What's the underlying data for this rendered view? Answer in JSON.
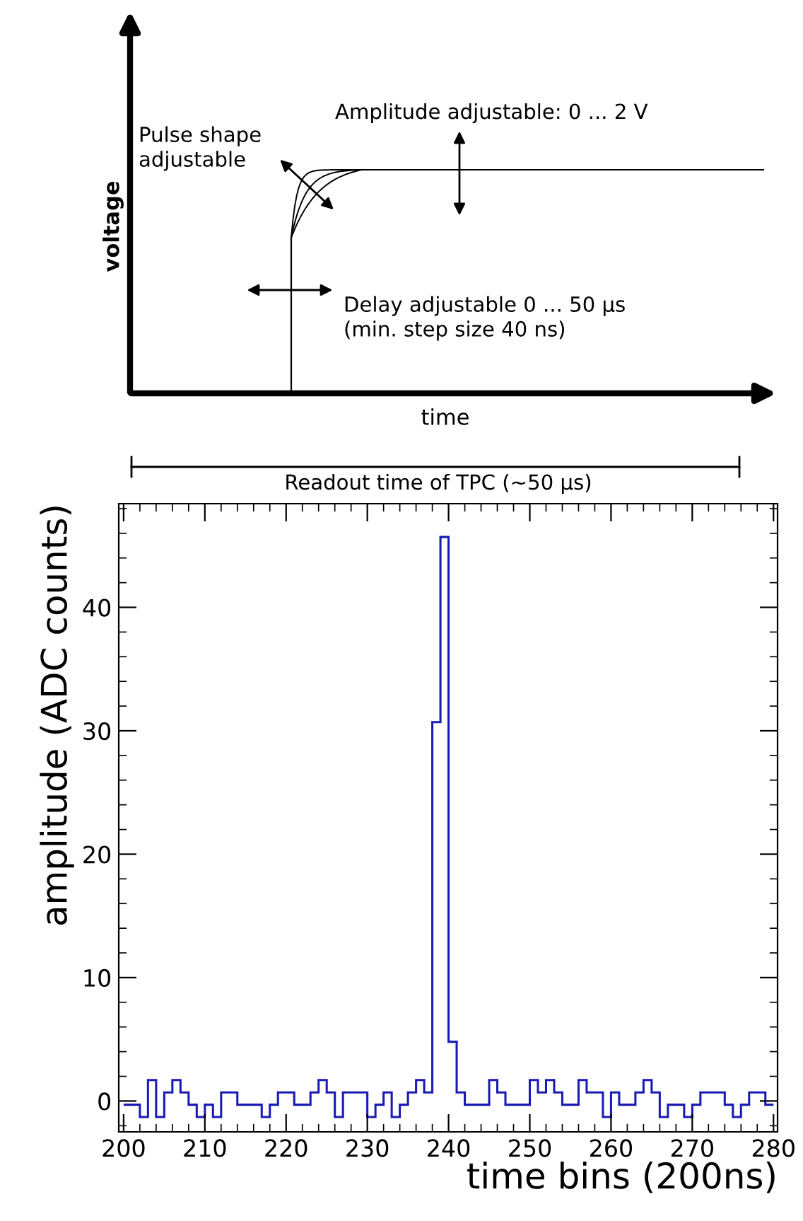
{
  "chart_data": [
    {
      "type": "other",
      "xlabel": "time",
      "ylabel": "voltage",
      "annotations": [
        "Amplitude adjustable: 0 ... 2 V",
        "Pulse shape\nadjustable",
        "Delay adjustable 0 ... 50 µs\n(min. step size 40 ns)",
        "Readout time of TPC (~50 µs)"
      ]
    },
    {
      "type": "histogram",
      "xlabel": "time bins (200ns)",
      "ylabel": "amplitude (ADC counts)",
      "color": "#1a1ab4",
      "bins": [
        200,
        201,
        202,
        203,
        204,
        205,
        206,
        207,
        208,
        209,
        210,
        211,
        212,
        213,
        214,
        215,
        216,
        217,
        218,
        219,
        220,
        221,
        222,
        223,
        224,
        225,
        226,
        227,
        228,
        229,
        230,
        231,
        232,
        233,
        234,
        235,
        236,
        237,
        238,
        239,
        240,
        241,
        242,
        243,
        244,
        245,
        246,
        247,
        248,
        249,
        250,
        251,
        252,
        253,
        254,
        255,
        256,
        257,
        258,
        259,
        260,
        261,
        262,
        263,
        264,
        265,
        266,
        267,
        268,
        269,
        270,
        271,
        272,
        273,
        274,
        275,
        276,
        277,
        278,
        279,
        280
      ],
      "values": [
        -0.3,
        -0.3,
        -1.3,
        1.7,
        -1.3,
        0.7,
        1.7,
        0.7,
        -0.3,
        -1.3,
        -0.3,
        -1.3,
        0.7,
        0.7,
        -0.3,
        -0.3,
        -0.3,
        -1.3,
        -0.3,
        0.7,
        0.7,
        -0.3,
        -0.3,
        0.7,
        1.7,
        0.7,
        -1.3,
        0.7,
        0.7,
        0.7,
        -1.3,
        -0.3,
        0.7,
        -1.3,
        -0.3,
        0.7,
        1.7,
        0.7,
        30.7,
        45.7,
        4.8,
        0.7,
        -0.3,
        -0.3,
        -0.3,
        1.7,
        0.7,
        -0.3,
        -0.3,
        -0.3,
        1.7,
        0.7,
        1.7,
        0.7,
        -0.3,
        -0.3,
        1.7,
        0.7,
        0.7,
        -1.3,
        0.7,
        -0.3,
        -0.3,
        0.7,
        1.7,
        0.7,
        -1.3,
        -0.3,
        -0.3,
        -1.3,
        -0.3,
        0.7,
        0.7,
        0.7,
        -0.3,
        -1.3,
        -0.3,
        0.7,
        0.7,
        -0.3
      ],
      "xlim": [
        199.4,
        280.5
      ],
      "ylim": [
        -2.5,
        48.4
      ],
      "xticks": [
        200,
        210,
        220,
        230,
        240,
        250,
        260,
        270,
        280
      ],
      "yticks": [
        0,
        10,
        20,
        30,
        40
      ]
    }
  ]
}
